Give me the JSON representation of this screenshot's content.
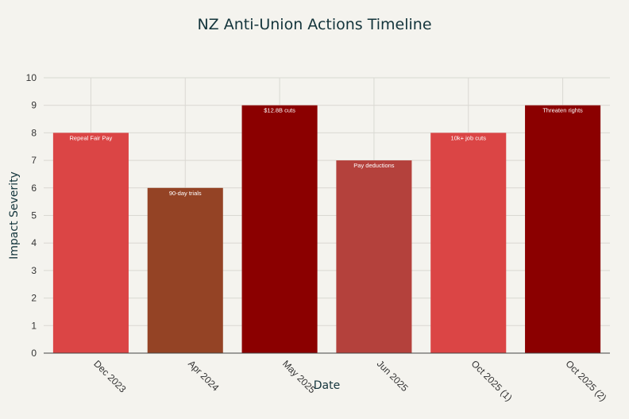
{
  "chart_data": {
    "type": "bar",
    "title": "NZ Anti-Union Actions Timeline",
    "xlabel": "Date",
    "ylabel": "Impact Severity",
    "ylim": [
      0,
      10
    ],
    "yticks": [
      0,
      1,
      2,
      3,
      4,
      5,
      6,
      7,
      8,
      9,
      10
    ],
    "grid": true,
    "categories": [
      "Dec 2023",
      "Apr 2024",
      "May 2025",
      "Jun 2025",
      "Oct 2025 (1)",
      "Oct 2025 (2)"
    ],
    "values": [
      8,
      6,
      9,
      7,
      8,
      9
    ],
    "bar_labels": [
      "Repeal Fair Pay",
      "90-day trials",
      "$12.8B cuts",
      "Pay deductions",
      "10k+ job cuts",
      "Threaten rights"
    ],
    "colors": [
      "#db4545",
      "#944325",
      "#8b0000",
      "#b4413c",
      "#db4545",
      "#8b0000"
    ]
  }
}
